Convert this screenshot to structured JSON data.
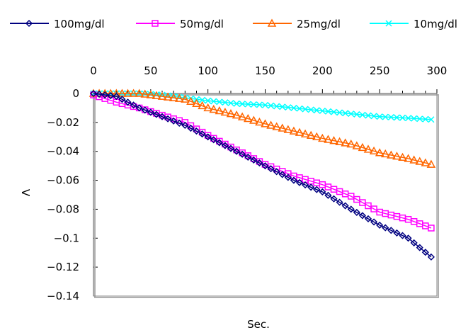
{
  "chart_data": {
    "type": "line",
    "title": "",
    "xlabel": "Sec.",
    "ylabel": "V",
    "xlim": [
      0,
      300
    ],
    "ylim": [
      -0.14,
      0
    ],
    "x_axis_position": "top",
    "xticks": [
      0,
      50,
      100,
      150,
      200,
      250,
      300
    ],
    "xtick_labels": [
      "0",
      "50",
      "100",
      "150",
      "200",
      "250",
      "300"
    ],
    "yticks": [
      0,
      -0.02,
      -0.04,
      -0.06,
      -0.08,
      -0.1,
      -0.12,
      -0.14
    ],
    "ytick_labels": [
      "0",
      "-0.02",
      "-0.04",
      "-0.06",
      "-0.08",
      "-0.1",
      "-0.12",
      "-0.14"
    ],
    "grid": false,
    "legend_position": "top",
    "x_anchor": [
      0,
      20,
      40,
      60,
      80,
      100,
      125,
      150,
      175,
      200,
      225,
      250,
      275,
      295
    ],
    "series": [
      {
        "name": "100mg/dl",
        "color": "#000080",
        "marker": "diamond",
        "values": [
          0,
          -0.002,
          -0.01,
          -0.016,
          -0.022,
          -0.03,
          -0.04,
          -0.05,
          -0.06,
          -0.068,
          -0.08,
          -0.091,
          -0.1,
          -0.113
        ]
      },
      {
        "name": "50mg/dl",
        "color": "#ff00ff",
        "marker": "square",
        "values": [
          -0.001,
          -0.006,
          -0.01,
          -0.015,
          -0.02,
          -0.029,
          -0.039,
          -0.049,
          -0.057,
          -0.063,
          -0.071,
          -0.082,
          -0.087,
          -0.093
        ]
      },
      {
        "name": "25mg/dl",
        "color": "#ff6600",
        "marker": "triangle",
        "values": [
          0,
          0,
          0,
          -0.002,
          -0.004,
          -0.01,
          -0.015,
          -0.021,
          -0.026,
          -0.031,
          -0.035,
          -0.041,
          -0.045,
          -0.049
        ]
      },
      {
        "name": "10mg/dl",
        "color": "#00ffff",
        "marker": "x",
        "values": [
          0,
          0,
          0,
          -0.001,
          -0.003,
          -0.005,
          -0.007,
          -0.008,
          -0.01,
          -0.012,
          -0.014,
          -0.016,
          -0.017,
          -0.018
        ]
      }
    ]
  }
}
